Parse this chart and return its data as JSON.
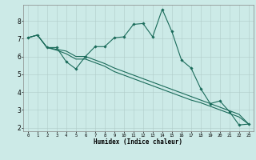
{
  "xlabel": "Humidex (Indice chaleur)",
  "background_color": "#cceae7",
  "line_color": "#1a6b5a",
  "grid_color": "#b0ccc9",
  "xlim": [
    -0.5,
    23.5
  ],
  "ylim": [
    1.8,
    8.9
  ],
  "xticks": [
    0,
    1,
    2,
    3,
    4,
    5,
    6,
    7,
    8,
    9,
    10,
    11,
    12,
    13,
    14,
    15,
    16,
    17,
    18,
    19,
    20,
    21,
    22,
    23
  ],
  "yticks": [
    2,
    3,
    4,
    5,
    6,
    7,
    8
  ],
  "line1_x": [
    0,
    1,
    2,
    3,
    4,
    5,
    6,
    7,
    8,
    9,
    10,
    11,
    12,
    13,
    14,
    15,
    16,
    17,
    18,
    19,
    20,
    21,
    22,
    23
  ],
  "line1_y": [
    7.05,
    7.2,
    6.5,
    6.5,
    5.7,
    5.3,
    6.0,
    6.55,
    6.55,
    7.05,
    7.1,
    7.8,
    7.85,
    7.1,
    8.65,
    7.4,
    5.8,
    5.35,
    4.2,
    3.35,
    3.5,
    2.9,
    2.15,
    2.2
  ],
  "line2_x": [
    0,
    1,
    2,
    3,
    4,
    5,
    6,
    7,
    8,
    9,
    10,
    11,
    12,
    13,
    14,
    15,
    16,
    17,
    18,
    19,
    20,
    21,
    22,
    23
  ],
  "line2_y": [
    7.05,
    7.2,
    6.5,
    6.4,
    6.3,
    6.0,
    6.0,
    5.8,
    5.6,
    5.35,
    5.15,
    4.95,
    4.75,
    4.55,
    4.35,
    4.15,
    3.95,
    3.75,
    3.55,
    3.35,
    3.15,
    2.95,
    2.75,
    2.2
  ],
  "line3_x": [
    0,
    1,
    2,
    3,
    4,
    5,
    6,
    7,
    8,
    9,
    10,
    11,
    12,
    13,
    14,
    15,
    16,
    17,
    18,
    19,
    20,
    21,
    22,
    23
  ],
  "line3_y": [
    7.05,
    7.2,
    6.5,
    6.35,
    6.15,
    5.85,
    5.85,
    5.65,
    5.45,
    5.15,
    4.95,
    4.75,
    4.55,
    4.35,
    4.15,
    3.95,
    3.75,
    3.55,
    3.4,
    3.2,
    3.0,
    2.8,
    2.6,
    2.2
  ],
  "figsize": [
    3.2,
    2.0
  ],
  "dpi": 100
}
